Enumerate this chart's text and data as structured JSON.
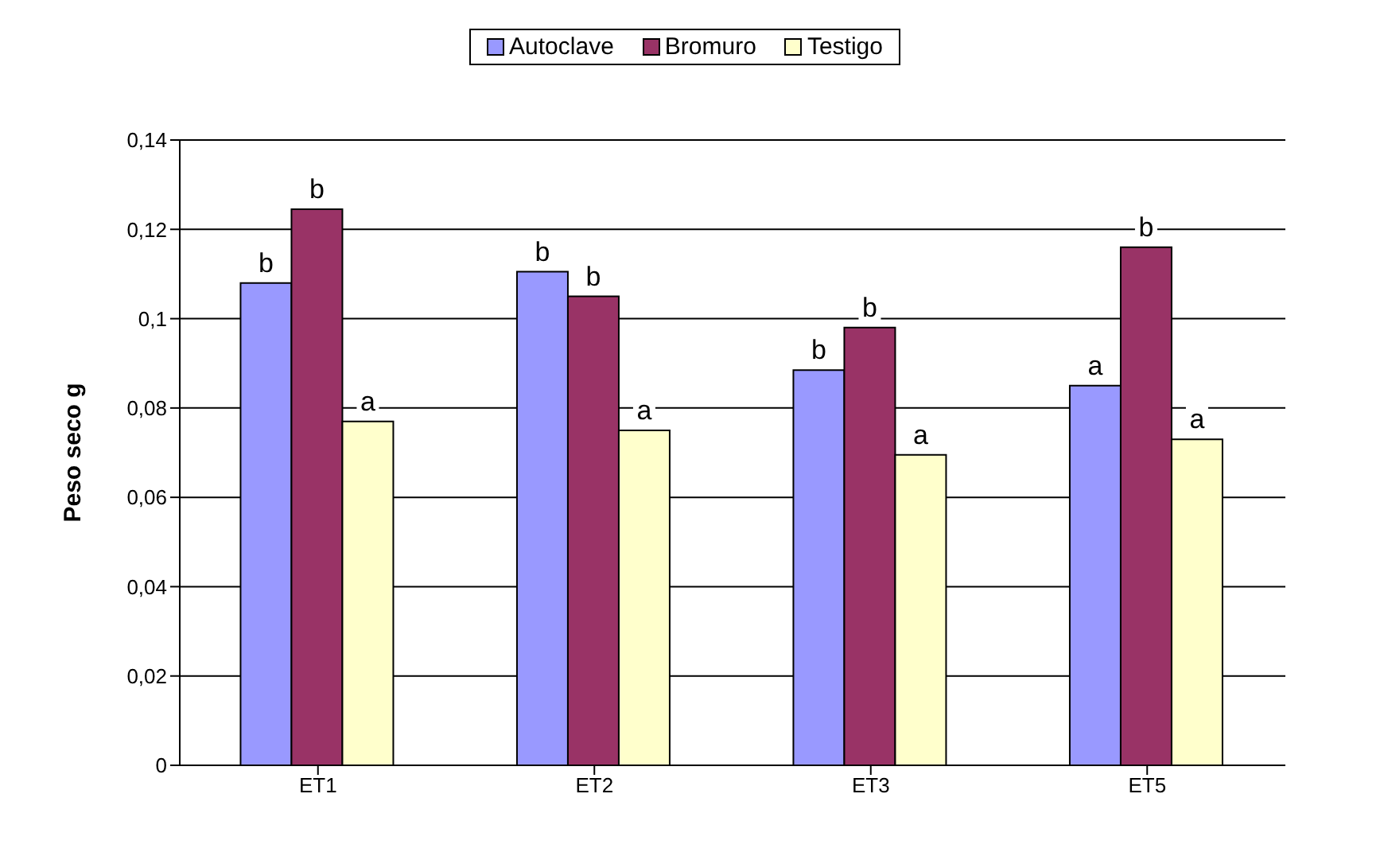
{
  "chart_data": {
    "type": "bar",
    "ylabel": "Peso seco g",
    "categories": [
      "ET1",
      "ET2",
      "ET3",
      "ET5"
    ],
    "series": [
      {
        "name": "Autoclave",
        "color": "#9999ff",
        "values": [
          0.108,
          0.1105,
          0.0885,
          0.085
        ],
        "value_labels": [
          "b",
          "b",
          "b",
          "a"
        ]
      },
      {
        "name": "Bromuro",
        "color": "#993366",
        "values": [
          0.1245,
          0.105,
          0.098,
          0.116
        ],
        "value_labels": [
          "b",
          "b",
          "b",
          "b"
        ]
      },
      {
        "name": "Testigo",
        "color": "#ffffcc",
        "values": [
          0.077,
          0.075,
          0.0695,
          0.073
        ],
        "value_labels": [
          "a",
          "a",
          "a",
          "a"
        ]
      }
    ],
    "ylim": [
      0,
      0.14
    ],
    "yticks": [
      {
        "value": 0,
        "label": "0"
      },
      {
        "value": 0.02,
        "label": "0,02"
      },
      {
        "value": 0.04,
        "label": "0,04"
      },
      {
        "value": 0.06,
        "label": "0,06"
      },
      {
        "value": 0.08,
        "label": "0,08"
      },
      {
        "value": 0.1,
        "label": "0,1"
      },
      {
        "value": 0.12,
        "label": "0,12"
      },
      {
        "value": 0.14,
        "label": "0,14"
      }
    ],
    "grid": "y",
    "legend": "top"
  }
}
